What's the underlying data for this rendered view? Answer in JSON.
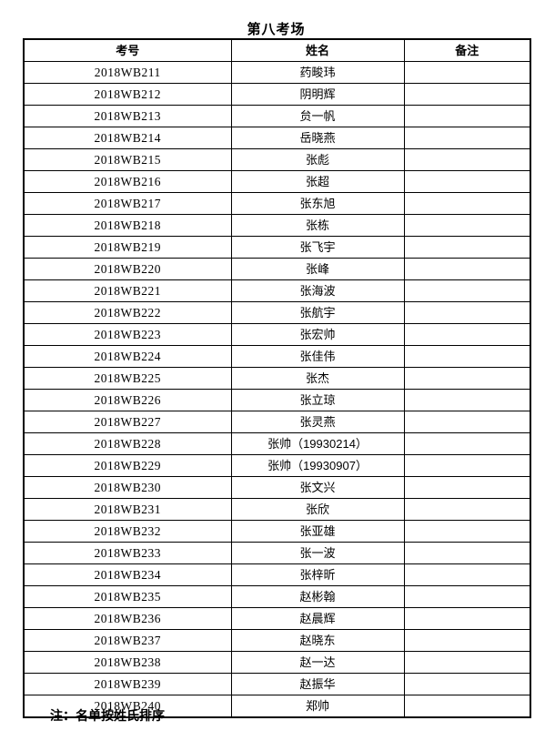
{
  "page": {
    "title": "第八考场",
    "footnote": "注：名单按姓氏排序"
  },
  "table": {
    "columns": [
      "考号",
      "姓名",
      "备注"
    ],
    "rows": [
      {
        "exam_no": "2018WB211",
        "name": "药畯玮",
        "remark": ""
      },
      {
        "exam_no": "2018WB212",
        "name": "阴明辉",
        "remark": ""
      },
      {
        "exam_no": "2018WB213",
        "name": "贠一帆",
        "remark": ""
      },
      {
        "exam_no": "2018WB214",
        "name": "岳晓燕",
        "remark": ""
      },
      {
        "exam_no": "2018WB215",
        "name": "张彪",
        "remark": ""
      },
      {
        "exam_no": "2018WB216",
        "name": "张超",
        "remark": ""
      },
      {
        "exam_no": "2018WB217",
        "name": "张东旭",
        "remark": ""
      },
      {
        "exam_no": "2018WB218",
        "name": "张栋",
        "remark": ""
      },
      {
        "exam_no": "2018WB219",
        "name": "张飞宇",
        "remark": ""
      },
      {
        "exam_no": "2018WB220",
        "name": "张峰",
        "remark": ""
      },
      {
        "exam_no": "2018WB221",
        "name": "张海波",
        "remark": ""
      },
      {
        "exam_no": "2018WB222",
        "name": "张航宇",
        "remark": ""
      },
      {
        "exam_no": "2018WB223",
        "name": "张宏帅",
        "remark": ""
      },
      {
        "exam_no": "2018WB224",
        "name": "张佳伟",
        "remark": ""
      },
      {
        "exam_no": "2018WB225",
        "name": "张杰",
        "remark": ""
      },
      {
        "exam_no": "2018WB226",
        "name": "张立琼",
        "remark": ""
      },
      {
        "exam_no": "2018WB227",
        "name": "张灵燕",
        "remark": ""
      },
      {
        "exam_no": "2018WB228",
        "name": "张帅（19930214）",
        "remark": ""
      },
      {
        "exam_no": "2018WB229",
        "name": "张帅（19930907）",
        "remark": ""
      },
      {
        "exam_no": "2018WB230",
        "name": "张文兴",
        "remark": ""
      },
      {
        "exam_no": "2018WB231",
        "name": "张欣",
        "remark": ""
      },
      {
        "exam_no": "2018WB232",
        "name": "张亚雄",
        "remark": ""
      },
      {
        "exam_no": "2018WB233",
        "name": "张一波",
        "remark": ""
      },
      {
        "exam_no": "2018WB234",
        "name": "张梓昕",
        "remark": ""
      },
      {
        "exam_no": "2018WB235",
        "name": "赵彬翰",
        "remark": ""
      },
      {
        "exam_no": "2018WB236",
        "name": "赵晨辉",
        "remark": ""
      },
      {
        "exam_no": "2018WB237",
        "name": "赵晓东",
        "remark": ""
      },
      {
        "exam_no": "2018WB238",
        "name": "赵一达",
        "remark": ""
      },
      {
        "exam_no": "2018WB239",
        "name": "赵振华",
        "remark": ""
      },
      {
        "exam_no": "2018WB240",
        "name": "郑帅",
        "remark": ""
      }
    ]
  },
  "colors": {
    "text": "#000000",
    "background": "#ffffff",
    "border": "#000000"
  }
}
